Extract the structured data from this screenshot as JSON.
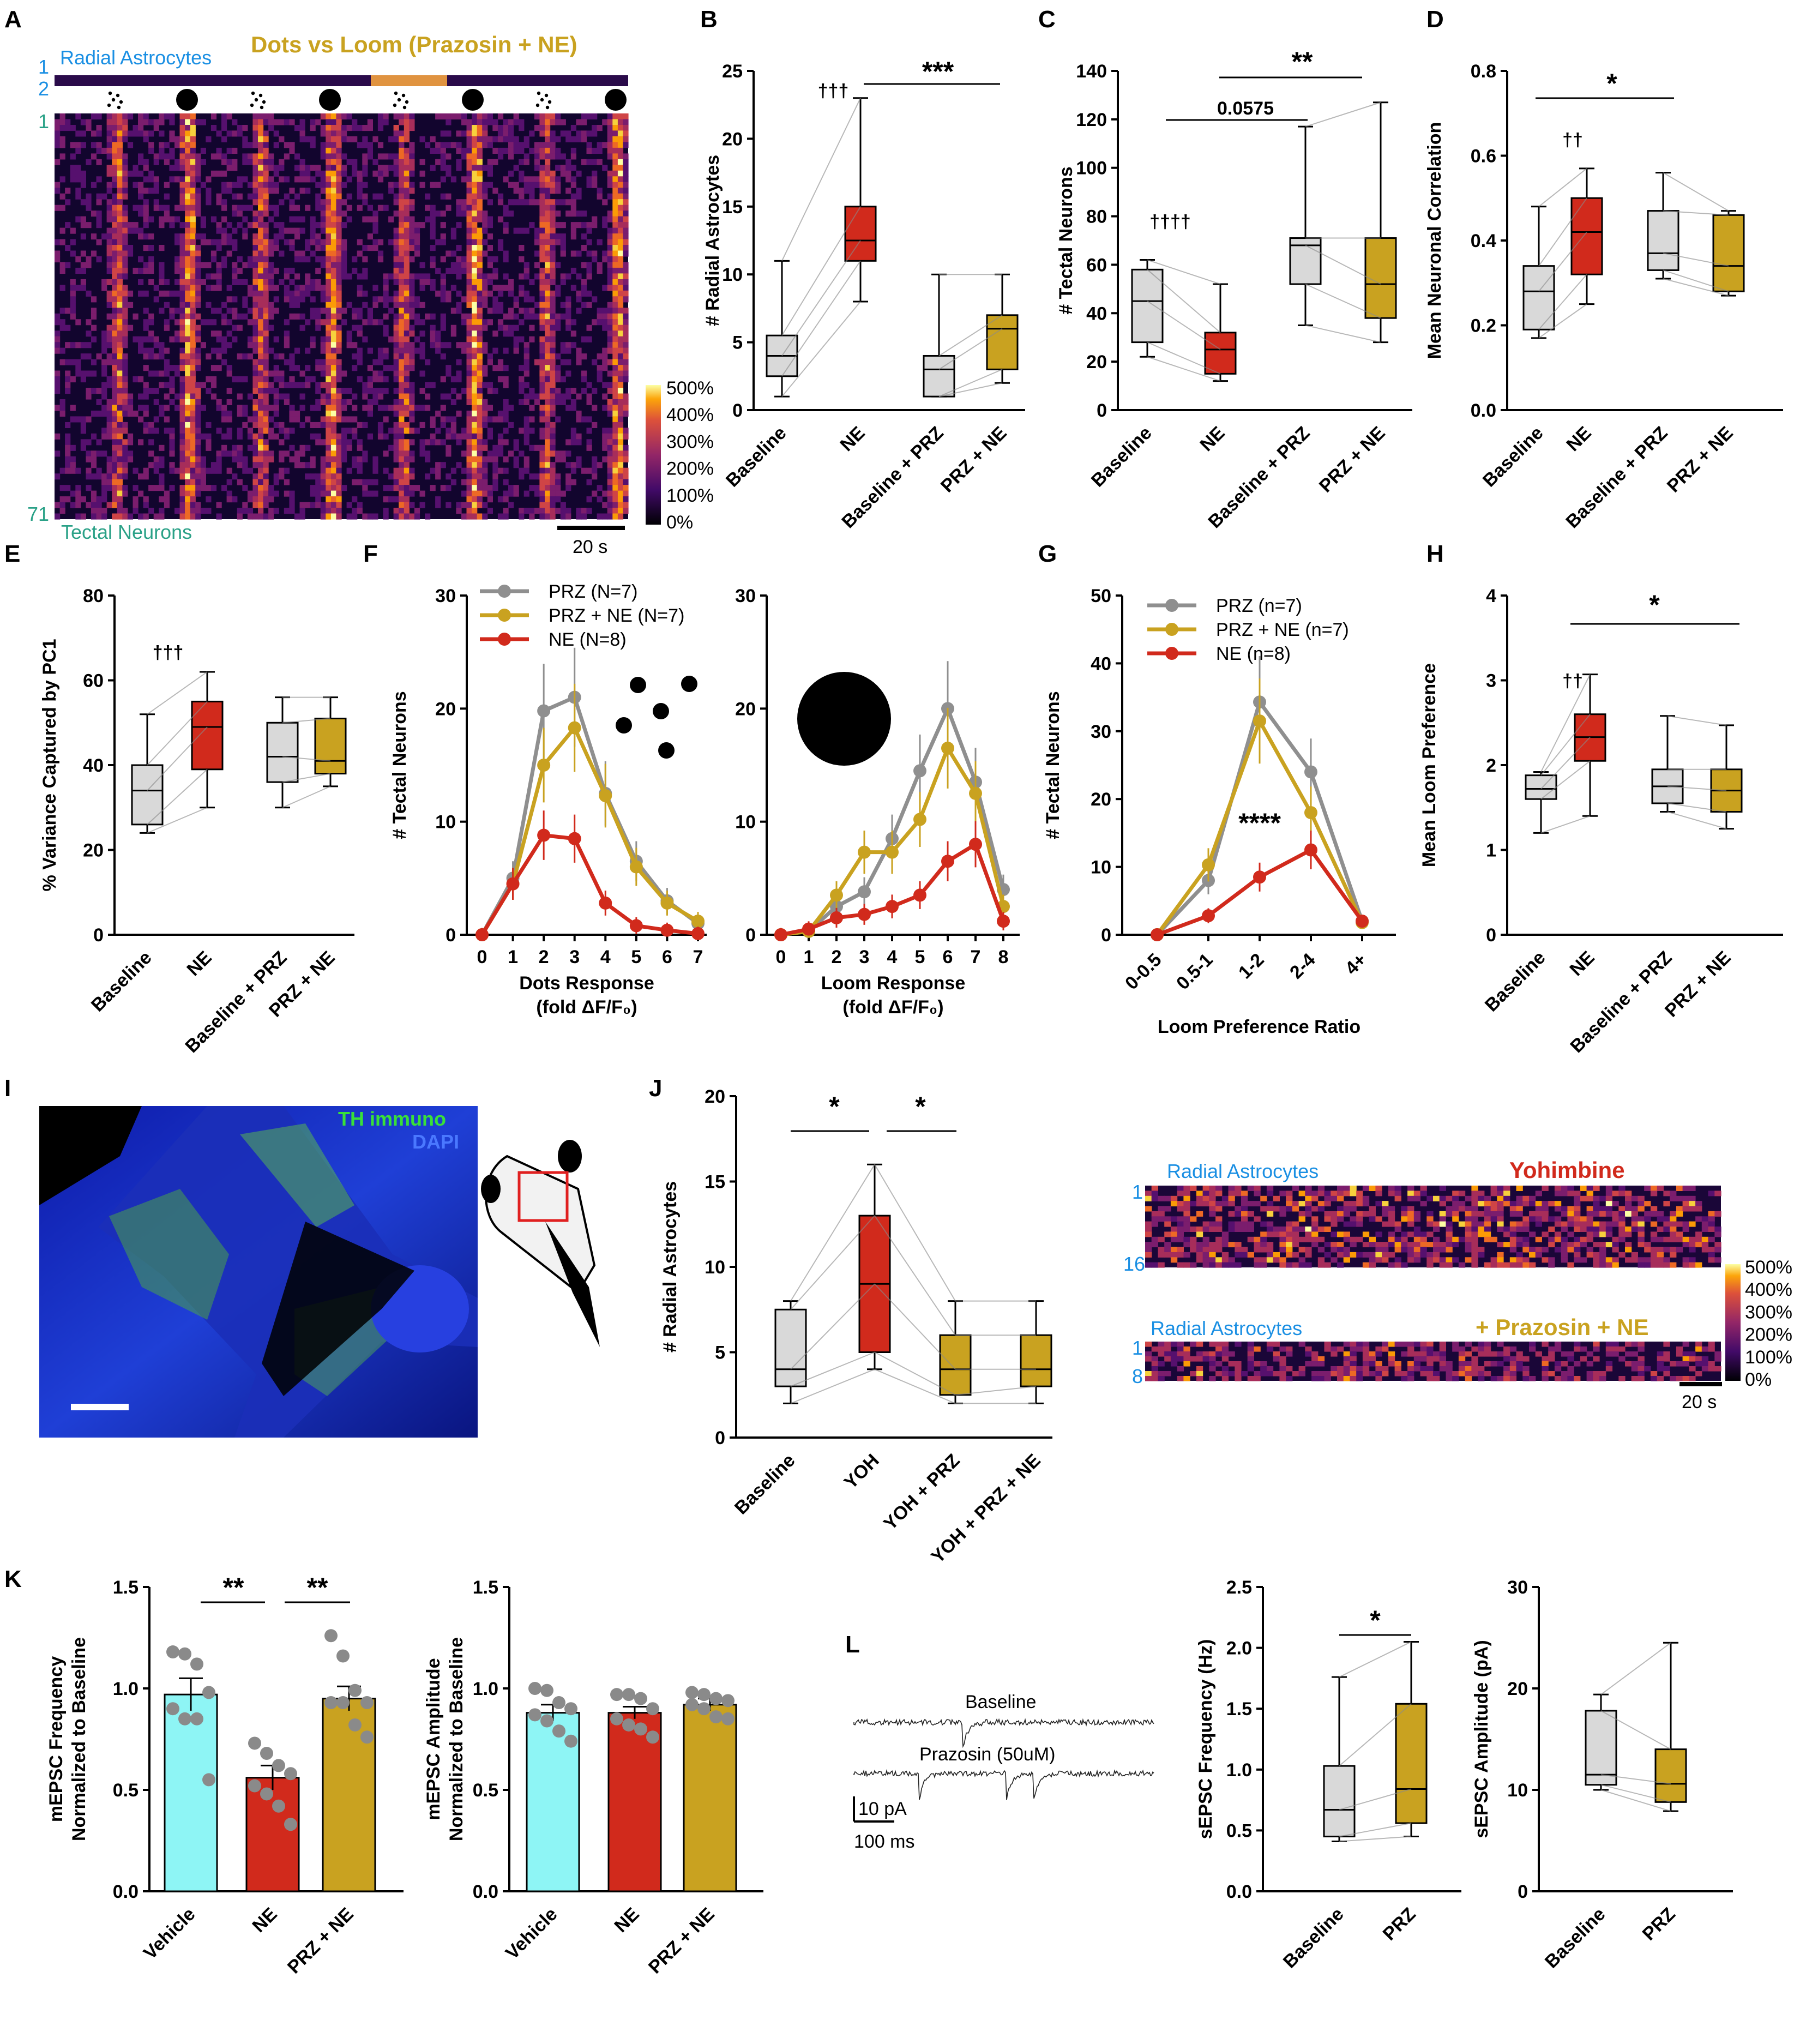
{
  "panel_labels": [
    "A",
    "B",
    "C",
    "D",
    "E",
    "F",
    "G",
    "H",
    "I",
    "J",
    "K",
    "L"
  ],
  "colors": {
    "baseline": "#d9d9d9",
    "ne": "#d12a1c",
    "prz": "#d9d9d9",
    "prz_ne": "#c9a220",
    "vehicle": "#8ef5f5",
    "gray_line": "#8a8a8a"
  },
  "panel_a": {
    "title": "Dots vs Loom (Prazosin + NE)",
    "top_label": "Radial Astrocytes",
    "bottom_label": "Tectal Neurons",
    "row_ticks": [
      "1",
      "2",
      "1",
      "71"
    ],
    "stimuli": [
      "dots",
      "loom",
      "dots",
      "loom",
      "dots",
      "loom",
      "dots",
      "loom"
    ],
    "colorbar_ticks": [
      "500%",
      "400%",
      "300%",
      "200%",
      "100%",
      "0%"
    ],
    "scalebar": "20 s"
  },
  "panel_i": {
    "label_th": "TH immuno",
    "label_dapi": "DAPI"
  },
  "panel_j": {
    "heatmap1_label": "Radial Astrocytes",
    "heatmap1_title": "Yohimbine",
    "heatmap1_ticks": [
      "1",
      "16"
    ],
    "heatmap2_label": "Radial Astrocytes",
    "heatmap2_title": "+ Prazosin + NE",
    "heatmap2_ticks": [
      "1",
      "8"
    ],
    "colorbar_ticks": [
      "500%",
      "400%",
      "300%",
      "200%",
      "100%",
      "0%"
    ],
    "scalebar": "20 s"
  },
  "panel_l_traces": {
    "trace1": "Baseline",
    "trace2": "Prazosin (50uM)",
    "scale_y": "10 pA",
    "scale_x": "100 ms"
  },
  "chart_data": [
    {
      "id": "B",
      "type": "box",
      "ylabel": "# Radial Astrocytes",
      "ylim": [
        0,
        25
      ],
      "yticks": [
        "0",
        "5",
        "10",
        "15",
        "20",
        "25"
      ],
      "categories": [
        "Baseline",
        "NE",
        "Baseline + PRZ",
        "PRZ + NE"
      ],
      "boxes": [
        {
          "min": 1,
          "q1": 2.5,
          "median": 4,
          "q3": 5.5,
          "max": 11
        },
        {
          "min": 8,
          "q1": 11,
          "median": 12.5,
          "q3": 15,
          "max": 23
        },
        {
          "min": 1,
          "q1": 1,
          "median": 3,
          "q3": 4,
          "max": 10
        },
        {
          "min": 2,
          "q1": 3,
          "median": 6,
          "q3": 7,
          "max": 10
        }
      ],
      "annotations": [
        "†††",
        "***"
      ]
    },
    {
      "id": "C",
      "type": "box",
      "ylabel": "# Tectal Neurons",
      "ylim": [
        0,
        140
      ],
      "yticks": [
        "0",
        "20",
        "40",
        "60",
        "80",
        "100",
        "120",
        "140"
      ],
      "categories": [
        "Baseline",
        "NE",
        "Baseline + PRZ",
        "PRZ + NE"
      ],
      "boxes": [
        {
          "min": 22,
          "q1": 28,
          "median": 45,
          "q3": 58,
          "max": 62
        },
        {
          "min": 12,
          "q1": 15,
          "median": 25,
          "q3": 32,
          "max": 52
        },
        {
          "min": 35,
          "q1": 52,
          "median": 68,
          "q3": 71,
          "max": 117
        },
        {
          "min": 28,
          "q1": 38,
          "median": 52,
          "q3": 71,
          "max": 127
        }
      ],
      "annotations": [
        "††††",
        "0.0575",
        "**"
      ]
    },
    {
      "id": "D",
      "type": "box",
      "ylabel": "Mean Neuronal Correlation",
      "ylim": [
        0,
        0.8
      ],
      "yticks": [
        "0.0",
        "0.2",
        "0.4",
        "0.6",
        "0.8"
      ],
      "categories": [
        "Baseline",
        "NE",
        "Baseline + PRZ",
        "PRZ + NE"
      ],
      "boxes": [
        {
          "min": 0.17,
          "q1": 0.19,
          "median": 0.28,
          "q3": 0.34,
          "max": 0.48
        },
        {
          "min": 0.25,
          "q1": 0.32,
          "median": 0.42,
          "q3": 0.5,
          "max": 0.57
        },
        {
          "min": 0.31,
          "q1": 0.33,
          "median": 0.37,
          "q3": 0.47,
          "max": 0.56
        },
        {
          "min": 0.27,
          "q1": 0.28,
          "median": 0.34,
          "q3": 0.46,
          "max": 0.47
        }
      ],
      "annotations": [
        "††",
        "*"
      ]
    },
    {
      "id": "E",
      "type": "box",
      "ylabel": "% Variance Captured by PC1",
      "ylim": [
        0,
        80
      ],
      "yticks": [
        "0",
        "20",
        "40",
        "60",
        "80"
      ],
      "categories": [
        "Baseline",
        "NE",
        "Baseline + PRZ",
        "PRZ + NE"
      ],
      "boxes": [
        {
          "min": 24,
          "q1": 26,
          "median": 34,
          "q3": 40,
          "max": 52
        },
        {
          "min": 30,
          "q1": 39,
          "median": 49,
          "q3": 55,
          "max": 62
        },
        {
          "min": 30,
          "q1": 36,
          "median": 42,
          "q3": 50,
          "max": 56
        },
        {
          "min": 35,
          "q1": 38,
          "median": 41,
          "q3": 51,
          "max": 56
        }
      ],
      "annotations": [
        "†††"
      ]
    },
    {
      "id": "F-dots",
      "type": "line",
      "xlabel": "Dots Response",
      "xlabel2": "(fold ΔF/F₀)",
      "ylabel": "# Tectal Neurons",
      "ylim": [
        0,
        30
      ],
      "yticks": [
        "0",
        "10",
        "20",
        "30"
      ],
      "x": [
        "0",
        "1",
        "2",
        "3",
        "4",
        "5",
        "6",
        "7"
      ],
      "series": [
        {
          "name": "PRZ (N=7)",
          "values": [
            0,
            5,
            19.8,
            21,
            12.5,
            6.5,
            3,
            1
          ]
        },
        {
          "name": "PRZ + NE (N=7)",
          "values": [
            0,
            4.5,
            15,
            18.3,
            12.3,
            6,
            2.8,
            1.2
          ]
        },
        {
          "name": "NE (N=8)",
          "values": [
            0,
            4.5,
            8.8,
            8.5,
            2.8,
            0.8,
            0.4,
            0.1
          ]
        }
      ]
    },
    {
      "id": "F-loom",
      "type": "line",
      "xlabel": "Loom Response",
      "xlabel2": "(fold ΔF/F₀)",
      "ylabel": "",
      "ylim": [
        0,
        30
      ],
      "yticks": [
        "0",
        "10",
        "20",
        "30"
      ],
      "x": [
        "0",
        "1",
        "2",
        "3",
        "4",
        "5",
        "6",
        "7",
        "8"
      ],
      "series": [
        {
          "name": "PRZ",
          "values": [
            0,
            0.3,
            2.5,
            3.8,
            8.5,
            14.5,
            20,
            13.5,
            4
          ]
        },
        {
          "name": "PRZ + NE",
          "values": [
            0,
            0.3,
            3.5,
            7.3,
            7.3,
            10.2,
            16.5,
            12.5,
            2.5
          ]
        },
        {
          "name": "NE",
          "values": [
            0,
            0.5,
            1.5,
            1.8,
            2.5,
            3.5,
            6.5,
            8,
            1.2
          ]
        }
      ]
    },
    {
      "id": "G",
      "type": "line",
      "xlabel": "Loom Preference Ratio",
      "ylabel": "# Tectal Neurons",
      "ylim": [
        0,
        50
      ],
      "yticks": [
        "0",
        "10",
        "20",
        "30",
        "40",
        "50"
      ],
      "x": [
        "0-0.5",
        "0.5-1",
        "1-2",
        "2-4",
        "4+"
      ],
      "series": [
        {
          "name": "PRZ (n=7)",
          "values": [
            0,
            8,
            34.3,
            24,
            2
          ]
        },
        {
          "name": "PRZ + NE (n=7)",
          "values": [
            0,
            10.3,
            31.5,
            18,
            1.8
          ]
        },
        {
          "name": "NE (n=8)",
          "values": [
            0,
            2.8,
            8.5,
            12.5,
            2
          ]
        }
      ],
      "annotations": [
        "****"
      ]
    },
    {
      "id": "H",
      "type": "box",
      "ylabel": "Mean Loom Preference",
      "ylim": [
        0,
        4
      ],
      "yticks": [
        "0",
        "1",
        "2",
        "3",
        "4"
      ],
      "categories": [
        "Baseline",
        "NE",
        "Baseline + PRZ",
        "PRZ + NE"
      ],
      "boxes": [
        {
          "min": 1.2,
          "q1": 1.6,
          "median": 1.72,
          "q3": 1.88,
          "max": 1.92
        },
        {
          "min": 1.4,
          "q1": 2.05,
          "median": 2.33,
          "q3": 2.6,
          "max": 3.07
        },
        {
          "min": 1.45,
          "q1": 1.55,
          "median": 1.75,
          "q3": 1.95,
          "max": 2.58
        },
        {
          "min": 1.25,
          "q1": 1.45,
          "median": 1.7,
          "q3": 1.95,
          "max": 2.47
        }
      ],
      "annotations": [
        "††",
        "*"
      ]
    },
    {
      "id": "J",
      "type": "box",
      "ylabel": "# Radial Astrocytes",
      "ylim": [
        0,
        20
      ],
      "yticks": [
        "0",
        "5",
        "10",
        "15",
        "20"
      ],
      "categories": [
        "Baseline",
        "YOH",
        "YOH + PRZ",
        "YOH + PRZ + NE"
      ],
      "boxes": [
        {
          "min": 2,
          "q1": 3,
          "median": 4,
          "q3": 7.5,
          "max": 8
        },
        {
          "min": 4,
          "q1": 5,
          "median": 9,
          "q3": 13,
          "max": 16
        },
        {
          "min": 2,
          "q1": 2.5,
          "median": 4,
          "q3": 6,
          "max": 8
        },
        {
          "min": 2,
          "q1": 3,
          "median": 4,
          "q3": 6,
          "max": 8
        }
      ],
      "annotations": [
        "*",
        "*"
      ]
    },
    {
      "id": "K-freq",
      "type": "bar",
      "ylabel": "mEPSC Frequency",
      "ylabel2": "Normalized to Baseline",
      "ylim": [
        0,
        1.5
      ],
      "yticks": [
        "0.0",
        "0.5",
        "1.0",
        "1.5"
      ],
      "categories": [
        "Vehicle",
        "NE",
        "PRZ + NE"
      ],
      "values": [
        0.97,
        0.56,
        0.95
      ],
      "sem": [
        0.08,
        0.06,
        0.06
      ],
      "points": [
        [
          1.18,
          1.17,
          1.12,
          0.98,
          0.9,
          0.85,
          0.85,
          0.55
        ],
        [
          0.73,
          0.68,
          0.62,
          0.58,
          0.52,
          0.48,
          0.42,
          0.33
        ],
        [
          1.26,
          1.16,
          0.99,
          0.93,
          0.93,
          0.93,
          0.82,
          0.76
        ]
      ],
      "annotations": [
        "**",
        "**"
      ]
    },
    {
      "id": "K-amp",
      "type": "bar",
      "ylabel": "mEPSC Amplitude",
      "ylabel2": "Normalized to Baseline",
      "ylim": [
        0,
        1.5
      ],
      "yticks": [
        "0.0",
        "0.5",
        "1.0",
        "1.5"
      ],
      "categories": [
        "Vehicle",
        "NE",
        "PRZ + NE"
      ],
      "values": [
        0.88,
        0.88,
        0.92
      ],
      "sem": [
        0.04,
        0.03,
        0.03
      ],
      "points": [
        [
          1.0,
          0.99,
          0.93,
          0.9,
          0.87,
          0.84,
          0.79,
          0.74
        ],
        [
          0.97,
          0.97,
          0.95,
          0.9,
          0.85,
          0.82,
          0.8,
          0.76
        ],
        [
          0.98,
          0.97,
          0.95,
          0.94,
          0.92,
          0.9,
          0.86,
          0.85
        ]
      ]
    },
    {
      "id": "L-freq",
      "type": "box",
      "ylabel": "sEPSC Frequency (Hz)",
      "ylim": [
        0,
        2.5
      ],
      "yticks": [
        "0.0",
        "0.5",
        "1.0",
        "1.5",
        "2.0",
        "2.5"
      ],
      "categories": [
        "Baseline",
        "PRZ"
      ],
      "boxes": [
        {
          "min": 0.41,
          "q1": 0.45,
          "median": 0.67,
          "q3": 1.03,
          "max": 1.76
        },
        {
          "min": 0.45,
          "q1": 0.56,
          "median": 0.84,
          "q3": 1.54,
          "max": 2.05
        }
      ],
      "annotations": [
        "*"
      ]
    },
    {
      "id": "L-amp",
      "type": "box",
      "ylabel": "sEPSC Amplitude (pA)",
      "ylim": [
        0,
        30
      ],
      "yticks": [
        "0",
        "10",
        "20",
        "30"
      ],
      "categories": [
        "Baseline",
        "PRZ"
      ],
      "boxes": [
        {
          "min": 10,
          "q1": 10.5,
          "median": 11.5,
          "q3": 17.8,
          "max": 19.4
        },
        {
          "min": 7.9,
          "q1": 8.8,
          "median": 10.6,
          "q3": 14,
          "max": 24.5
        }
      ]
    }
  ]
}
